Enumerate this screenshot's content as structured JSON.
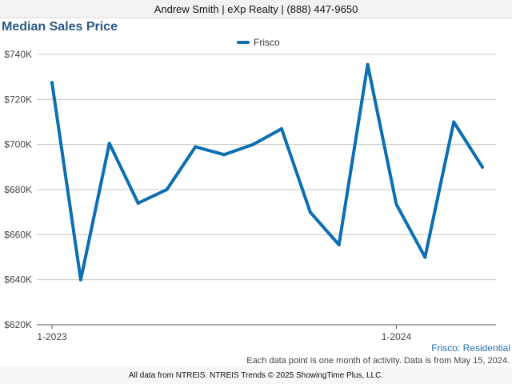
{
  "header": {
    "agent_info": "Andrew Smith | eXp Realty | (888) 447-9650"
  },
  "colors": {
    "series": "#0b6fb1",
    "title": "#2a5a86",
    "grid": "#c8c8c8"
  },
  "chart_data": {
    "type": "line",
    "title": "Median Sales Price",
    "xlabel": "",
    "ylabel": "",
    "x": [
      "2023-01",
      "2023-02",
      "2023-03",
      "2023-04",
      "2023-05",
      "2023-06",
      "2023-07",
      "2023-08",
      "2023-09",
      "2023-10",
      "2023-11",
      "2023-12",
      "2024-01",
      "2024-02",
      "2024-03",
      "2024-04"
    ],
    "x_tick_labels": [
      {
        "x": "2023-01",
        "label": "1-2023"
      },
      {
        "x": "2024-01",
        "label": "1-2024"
      }
    ],
    "y_tick_labels": [
      "$620K",
      "$640K",
      "$660K",
      "$680K",
      "$700K",
      "$720K",
      "$740K"
    ],
    "y_ticks": [
      620000,
      640000,
      660000,
      680000,
      700000,
      720000,
      740000
    ],
    "ylim": [
      620000,
      740000
    ],
    "grid": "horizontal",
    "legend_position": "top-center",
    "series": [
      {
        "name": "Frisco",
        "values": [
          727500,
          640000,
          700500,
          674000,
          680000,
          699000,
          695500,
          700000,
          707000,
          670000,
          655500,
          735500,
          673500,
          650000,
          710000,
          690000
        ]
      }
    ]
  },
  "footer": {
    "series_label": "Frisco: Residential",
    "note": "Each data point is one month of activity. Data is from May 15, 2024.",
    "source": "All data from NTREIS. NTREIS Trends © 2025 ShowingTime Plus, LLC."
  }
}
